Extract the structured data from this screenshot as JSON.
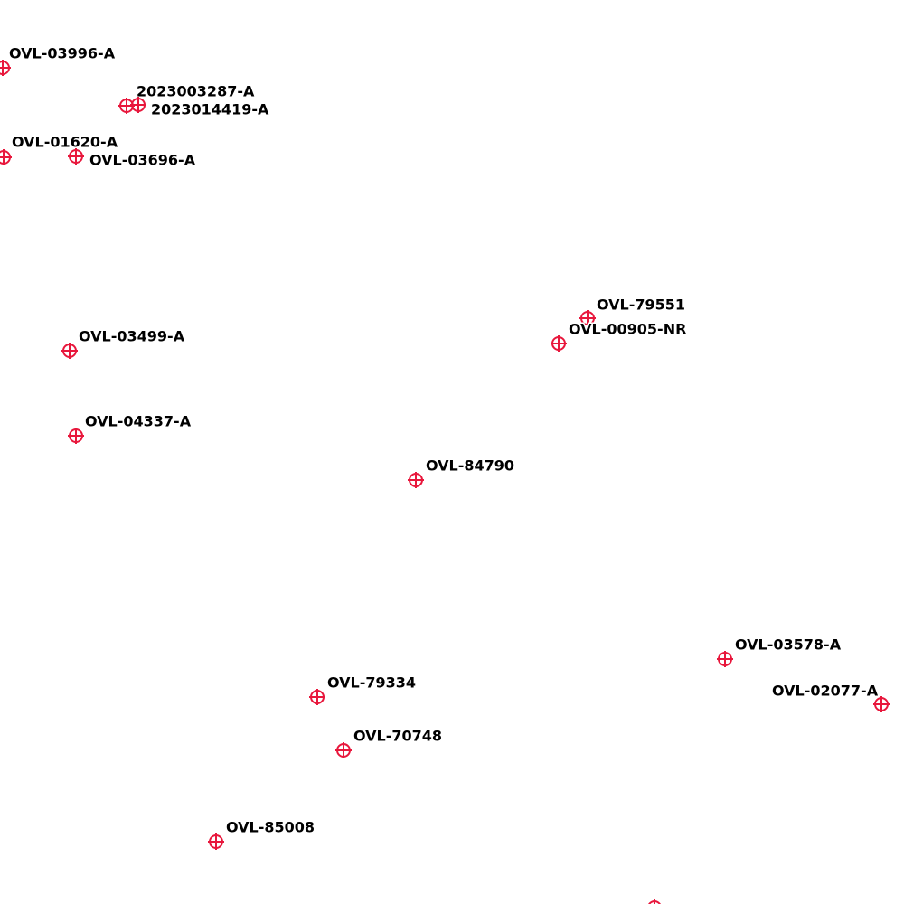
{
  "markers": [
    {
      "label": "OVL-03996-A"
    },
    {
      "label": "2023003287-A"
    },
    {
      "label": "2023014419-A"
    },
    {
      "label": "OVL-01620-A"
    },
    {
      "label": "OVL-03696-A"
    },
    {
      "label": "OVL-79551"
    },
    {
      "label": "OVL-00905-NR"
    },
    {
      "label": "OVL-03499-A"
    },
    {
      "label": "OVL-04337-A"
    },
    {
      "label": "OVL-84790"
    },
    {
      "label": "OVL-03578-A"
    },
    {
      "label": "OVL-02077-A"
    },
    {
      "label": "OVL-79334"
    },
    {
      "label": "OVL-70748"
    },
    {
      "label": "OVL-85008"
    }
  ]
}
